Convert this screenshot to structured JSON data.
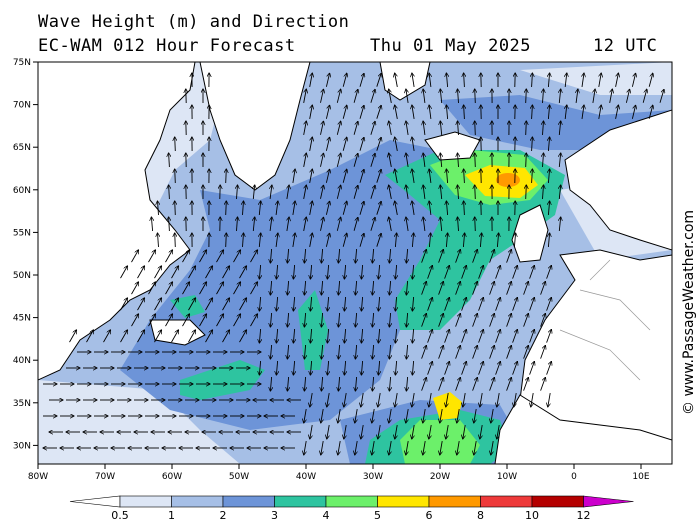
{
  "header": {
    "title_line1": "Wave Height (m) and Direction",
    "model_line": "EC-WAM 012 Hour Forecast",
    "date": "Thu 01 May 2025",
    "time": "12 UTC"
  },
  "watermark": "© www.PassageWeather.com",
  "axes": {
    "lat_labels": [
      "75N",
      "70N",
      "65N",
      "60N",
      "55N",
      "50N",
      "45N",
      "40N",
      "35N",
      "30N"
    ],
    "lon_labels": [
      "80W",
      "70W",
      "60W",
      "50W",
      "40W",
      "30W",
      "20W",
      "10W",
      "0",
      "10E"
    ]
  },
  "legend": {
    "unit": "m",
    "bins": [
      {
        "label": "0.5",
        "color": "#ffffff"
      },
      {
        "label": "1",
        "color": "#dde6f5"
      },
      {
        "label": "2",
        "color": "#a6bfe6"
      },
      {
        "label": "3",
        "color": "#6d94d8"
      },
      {
        "label": "4",
        "color": "#2ec4a0"
      },
      {
        "label": "5",
        "color": "#6cf06a"
      },
      {
        "label": "6",
        "color": "#ffe600"
      },
      {
        "label": "8",
        "color": "#ff9900"
      },
      {
        "label": "10",
        "color": "#ee3a3a"
      },
      {
        "label": "12",
        "color": "#b40000"
      }
    ],
    "max_color": "#cc00cc"
  },
  "colors": {
    "land": "#ffffff",
    "coast": "#000000",
    "border": "#999999"
  }
}
